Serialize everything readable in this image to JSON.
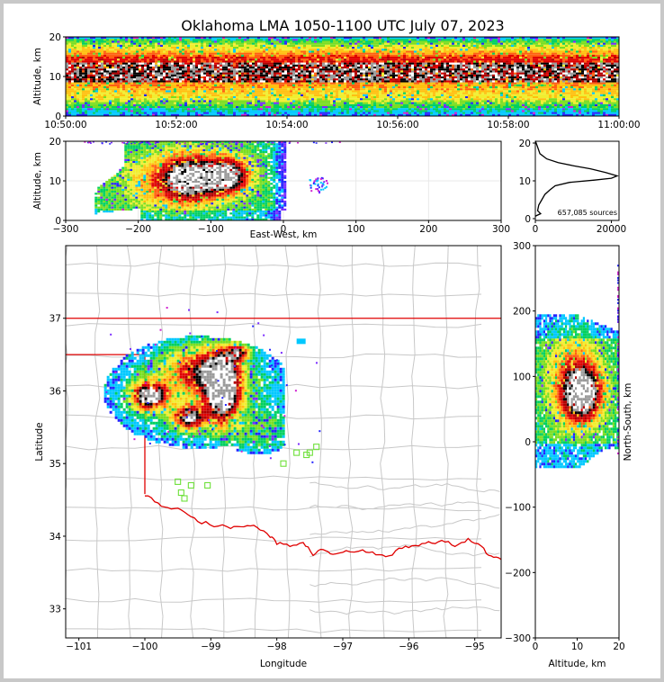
{
  "title": "Oklahoma LMA 1050-1100 UTC July 07, 2023",
  "colors": {
    "density_scale": [
      "#d01fd0",
      "#7a2cff",
      "#2424ff",
      "#00c8ff",
      "#00d060",
      "#7ade22",
      "#f0ee30",
      "#ffc010",
      "#ff6010",
      "#e00000",
      "#b00000",
      "#000000",
      "#9a9a9a",
      "#ffffff"
    ],
    "state_border": "#e00000",
    "county_lines": "#c8c8c8",
    "station_markers": "#6ee03a"
  },
  "chart_data": [
    {
      "id": "time-height",
      "type": "heatmap",
      "ylabel": "Altitude, km",
      "xlabel": "",
      "xticks": [
        "10:50:00",
        "10:52:00",
        "10:54:00",
        "10:56:00",
        "10:58:00",
        "11:00:00"
      ],
      "yticks": [
        0,
        10,
        20
      ],
      "xlim": [
        "10:50:00",
        "11:00:00"
      ],
      "ylim": [
        0,
        20
      ],
      "band_altitude_km": [
        0,
        20
      ],
      "peak_altitude_km": 11
    },
    {
      "id": "east-west-height",
      "type": "heatmap",
      "xlabel": "East-West, km",
      "ylabel": "Altitude, km",
      "xticks": [
        -300,
        -200,
        -100,
        0,
        100,
        200,
        300
      ],
      "yticks": [
        0,
        10,
        20
      ],
      "xlim": [
        -300,
        300
      ],
      "ylim": [
        0,
        20
      ],
      "main_region_x_km": [
        -250,
        10
      ],
      "cores_x_km": [
        -130,
        -80
      ]
    },
    {
      "id": "altitude-histogram",
      "type": "line",
      "xticks": [
        0,
        20000
      ],
      "yticks": [
        0,
        10,
        20
      ],
      "xlim": [
        0,
        22000
      ],
      "ylim": [
        0,
        20
      ],
      "annotation": "657,085 sources",
      "points": [
        [
          0,
          20.6
        ],
        [
          400,
          19.5
        ],
        [
          1200,
          17.2
        ],
        [
          3000,
          15.8
        ],
        [
          6000,
          14.8
        ],
        [
          10000,
          14.0
        ],
        [
          14500,
          13.2
        ],
        [
          18500,
          12.2
        ],
        [
          21500,
          11.3
        ],
        [
          20000,
          10.7
        ],
        [
          15500,
          10.2
        ],
        [
          9000,
          9.6
        ],
        [
          5200,
          8.7
        ],
        [
          3800,
          7.6
        ],
        [
          2500,
          6.4
        ],
        [
          1700,
          5.0
        ],
        [
          900,
          3.6
        ],
        [
          600,
          2.1
        ],
        [
          1400,
          1.3
        ],
        [
          300,
          0.8
        ],
        [
          0,
          0.6
        ]
      ]
    },
    {
      "id": "plan-view",
      "type": "heatmap",
      "xlabel": "Longitude",
      "ylabel": "Latitude",
      "xticks": [
        -101,
        -100,
        -99,
        -98,
        -97,
        -96,
        -95
      ],
      "yticks": [
        33,
        34,
        35,
        36,
        37
      ],
      "xlim": [
        -101.2,
        -94.6
      ],
      "ylim": [
        32.6,
        38.0
      ],
      "stations": [
        [
          -99.5,
          34.75
        ],
        [
          -99.45,
          34.6
        ],
        [
          -99.4,
          34.52
        ],
        [
          -99.3,
          34.7
        ],
        [
          -99.05,
          34.7
        ],
        [
          -97.9,
          35.0
        ],
        [
          -97.7,
          35.15
        ],
        [
          -97.55,
          35.12
        ],
        [
          -97.4,
          35.23
        ],
        [
          -97.5,
          35.15
        ]
      ]
    },
    {
      "id": "north-south-height",
      "type": "heatmap",
      "xlabel": "Altitude, km",
      "ylabel": "North-South, km",
      "xticks": [
        0,
        10,
        20
      ],
      "yticks": [
        -300,
        -200,
        -100,
        0,
        100,
        200,
        300
      ],
      "xlim": [
        0,
        20
      ],
      "ylim": [
        -300,
        300
      ],
      "core_y_km": [
        40,
        110
      ]
    }
  ]
}
